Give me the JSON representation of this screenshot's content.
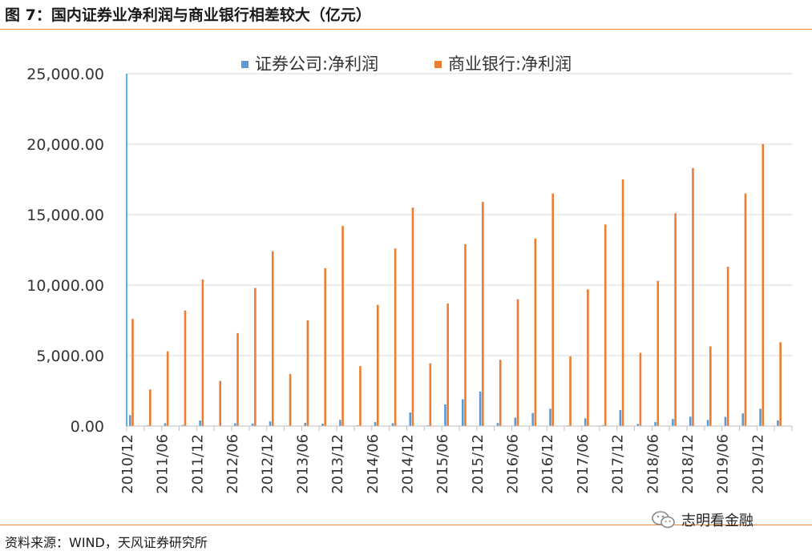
{
  "page": {
    "title": "图 7：国内证券业净利润与商业银行相差较大（亿元）",
    "source": "资料来源：WIND，天风证券研究所",
    "watermark": "志明看金融",
    "watermark_icon": "wechat-icon"
  },
  "chart_data": {
    "type": "bar",
    "title": "",
    "xlabel": "",
    "ylabel": "",
    "ylim": [
      0,
      25000
    ],
    "yticks": [
      "0.00",
      "5,000.00",
      "10,000.00",
      "15,000.00",
      "20,000.00",
      "25,000.00"
    ],
    "grid": true,
    "legend_position": "top",
    "categories": [
      "2010/12",
      "2011/03",
      "2011/06",
      "2011/09",
      "2011/12",
      "2012/03",
      "2012/06",
      "2012/09",
      "2012/12",
      "2013/03",
      "2013/06",
      "2013/09",
      "2013/12",
      "2014/03",
      "2014/06",
      "2014/09",
      "2014/12",
      "2015/03",
      "2015/06",
      "2015/09",
      "2015/12",
      "2016/03",
      "2016/06",
      "2016/09",
      "2016/12",
      "2017/03",
      "2017/06",
      "2017/09",
      "2017/12",
      "2018/03",
      "2018/06",
      "2018/09",
      "2018/12",
      "2019/03",
      "2019/06",
      "2019/09",
      "2019/12",
      "2020/03"
    ],
    "xtick_labels": [
      "2010/12",
      "2011/06",
      "2011/12",
      "2012/06",
      "2012/12",
      "2013/06",
      "2013/12",
      "2014/06",
      "2014/12",
      "2015/06",
      "2015/12",
      "2016/06",
      "2016/12",
      "2017/06",
      "2017/12",
      "2018/06",
      "2018/12",
      "2019/06",
      "2019/12"
    ],
    "series": [
      {
        "name": "证券公司:净利润",
        "color": "#5b9bd5",
        "values": [
          776,
          60,
          200,
          80,
          394,
          30,
          200,
          180,
          330,
          40,
          230,
          170,
          440,
          60,
          280,
          200,
          965,
          50,
          1532,
          1900,
          2448,
          220,
          600,
          930,
          1234,
          50,
          550,
          70,
          1130,
          150,
          280,
          500,
          666,
          430,
          650,
          900,
          1231,
          400
        ]
      },
      {
        "name": "商业银行:净利润",
        "color": "#ed7d31",
        "values": [
          7600,
          2600,
          5300,
          8200,
          10400,
          3200,
          6600,
          9800,
          12400,
          3700,
          7500,
          11200,
          14200,
          4250,
          8600,
          12600,
          15500,
          4450,
          8700,
          12900,
          15900,
          4700,
          9000,
          13300,
          16500,
          4950,
          9700,
          14300,
          17500,
          5200,
          10300,
          15100,
          18300,
          5650,
          11300,
          16500,
          20000,
          5950
        ]
      }
    ]
  }
}
